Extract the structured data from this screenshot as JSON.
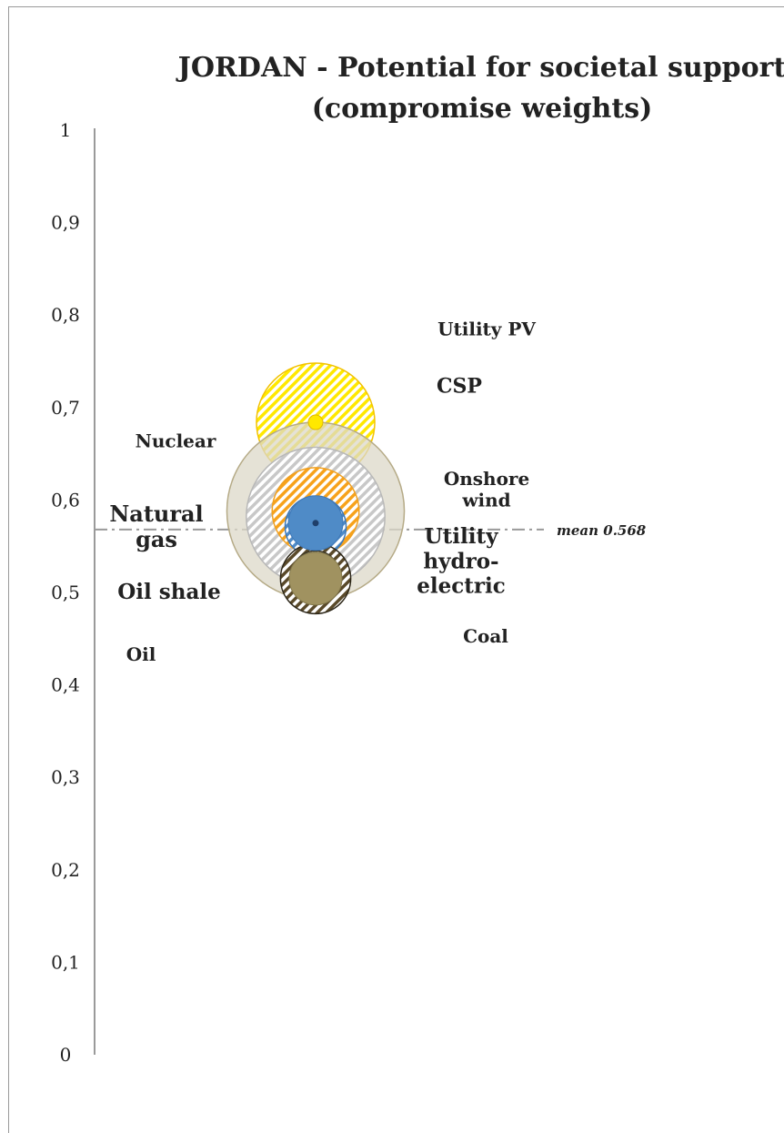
{
  "chart_data": {
    "type": "bubble",
    "title": [
      "JORDAN - Potential for societal support",
      "(compromise weights)"
    ],
    "ylim": [
      0,
      1
    ],
    "yticks": [
      "0",
      "0,1",
      "0,2",
      "0,3",
      "0,4",
      "0,5",
      "0,6",
      "0,7",
      "0,8",
      "0,9",
      "1"
    ],
    "mean": {
      "value": 0.568,
      "label": "mean 0.568"
    },
    "series": [
      {
        "name": "Utility PV",
        "y": 0.684,
        "outer": 0.748,
        "inner": 0.62,
        "fill": "#FFE800",
        "hatch": true,
        "color": "#F2C200"
      },
      {
        "name": "CSP",
        "y": 0.588,
        "outer": 0.684,
        "inner": 0.492,
        "fill": "#DCD8C8",
        "hatch": false,
        "color": "#B5AA86"
      },
      {
        "name": "Nuclear",
        "y": 0.582,
        "outer": 0.657,
        "inner": 0.507,
        "fill": "#C8C8C8",
        "hatch": true,
        "color": "#B8B8B8"
      },
      {
        "name": "Onshore wind",
        "y": 0.588,
        "outer": 0.635,
        "inner": 0.541,
        "fill": "#F7A21B",
        "hatch": true,
        "color": "#F0A020"
      },
      {
        "name": "Natural gas",
        "y": 0.571,
        "outer": 0.604,
        "inner": 0.538,
        "fill": "#4F8BC7",
        "hatch": true,
        "color": "#3E78B8"
      },
      {
        "name": "Utility hydro-electric",
        "y": 0.575,
        "outer": 0.597,
        "inner": 0.553,
        "fill": "#4F8BC7",
        "hatch": false,
        "color": "#3E78B8"
      },
      {
        "name": "Oil shale",
        "y": 0.515,
        "outer": 0.553,
        "inner": 0.477,
        "fill": "#5A4A2A",
        "hatch": true,
        "color": "#2C2618"
      },
      {
        "name": "Oil",
        "y": 0.52,
        "outer": 0.545,
        "inner": 0.495,
        "fill": "#7A6E5A",
        "hatch": true,
        "color": "#3A3424"
      },
      {
        "name": "Coal",
        "y": 0.515,
        "outer": 0.537,
        "inner": 0.493,
        "fill": "#A09260",
        "hatch": false,
        "color": "#8A7E50"
      }
    ],
    "labels": [
      {
        "text": [
          "Utility PV"
        ],
        "y": 0.778,
        "size": 20
      },
      {
        "text": [
          "CSP"
        ],
        "y": 0.716,
        "size": 22
      },
      {
        "text": [
          "Nuclear"
        ],
        "y": 0.657,
        "size": 20
      },
      {
        "text": [
          "Onshore",
          "wind"
        ],
        "y": 0.616,
        "size": 20
      },
      {
        "text": [
          "Natural",
          "gas"
        ],
        "y": 0.577,
        "size": 24
      },
      {
        "text": [
          "Utility",
          "hydro-",
          "electric"
        ],
        "y": 0.553,
        "size": 23
      },
      {
        "text": [
          "Oil shale"
        ],
        "y": 0.493,
        "size": 23
      },
      {
        "text": [
          "Coal"
        ],
        "y": 0.446,
        "size": 20
      },
      {
        "text": [
          "Oil"
        ],
        "y": 0.426,
        "size": 20
      }
    ]
  }
}
